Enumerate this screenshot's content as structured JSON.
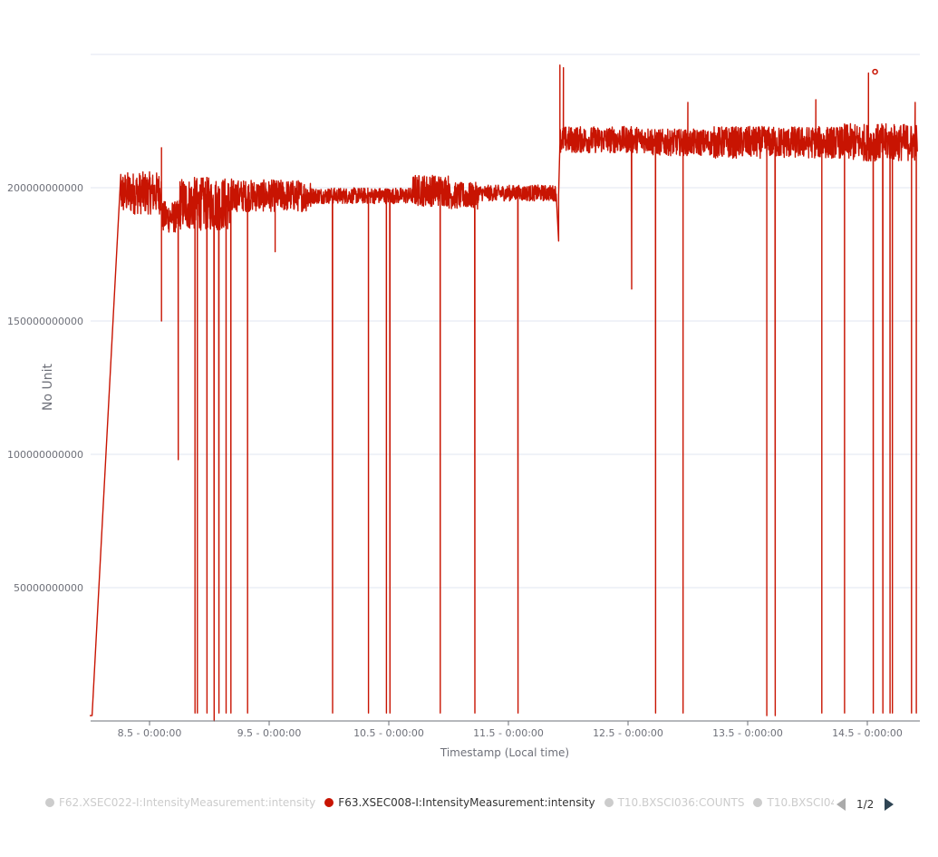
{
  "chart_data": {
    "type": "line",
    "ylabel": "No Unit",
    "xlabel": "Timestamp (Local time)",
    "x_ticks": [
      "8.5 - 0:00:00",
      "9.5 - 0:00:00",
      "10.5 - 0:00:00",
      "11.5 - 0:00:00",
      "12.5 - 0:00:00",
      "13.5 - 0:00:00",
      "14.5 - 0:00:00"
    ],
    "x_range_days": [
      8.0,
      14.92
    ],
    "y_ticks": [
      "50000000000",
      "100000000000",
      "150000000000",
      "200000000000"
    ],
    "ylim": [
      0,
      250000000000
    ],
    "grid": true,
    "series_color": "#c81402",
    "series": [
      {
        "name": "F63.XSEC008-I:IntensityMeasurement:intensity",
        "segments": [
          {
            "x_range": [
              8.0,
              8.02
            ],
            "base": 2000000000,
            "noise": 0
          },
          {
            "x_range": [
              8.02,
              8.26
            ],
            "base": 2000000000,
            "noise": 0,
            "ramp_to": 205000000000
          },
          {
            "x_range": [
              8.26,
              8.6
            ],
            "base": 198000000000,
            "noise": 8000000000
          },
          {
            "x_range": [
              8.6,
              8.75
            ],
            "base": 189000000000,
            "noise": 6000000000
          },
          {
            "x_range": [
              8.75,
              9.2
            ],
            "base": 194000000000,
            "noise": 10000000000
          },
          {
            "x_range": [
              9.2,
              9.85
            ],
            "base": 197000000000,
            "noise": 6000000000
          },
          {
            "x_range": [
              9.85,
              10.7
            ],
            "base": 197000000000,
            "noise": 3000000000
          },
          {
            "x_range": [
              10.7,
              11.0
            ],
            "base": 199000000000,
            "noise": 6000000000
          },
          {
            "x_range": [
              11.0,
              11.25
            ],
            "base": 197000000000,
            "noise": 5000000000
          },
          {
            "x_range": [
              11.25,
              11.9
            ],
            "base": 198000000000,
            "noise": 3000000000
          },
          {
            "x_range": [
              11.93,
              12.7
            ],
            "base": 218000000000,
            "noise": 5000000000
          },
          {
            "x_range": [
              12.7,
              13.2
            ],
            "base": 217000000000,
            "noise": 5000000000
          },
          {
            "x_range": [
              13.2,
              14.3
            ],
            "base": 217000000000,
            "noise": 6000000000
          },
          {
            "x_range": [
              14.3,
              14.92
            ],
            "base": 217000000000,
            "noise": 7000000000
          }
        ],
        "spikes_up": [
          {
            "x": 8.6,
            "y": 215000000000
          },
          {
            "x": 11.93,
            "y": 246000000000
          },
          {
            "x": 11.96,
            "y": 245000000000
          },
          {
            "x": 13.0,
            "y": 232000000000
          },
          {
            "x": 14.07,
            "y": 233000000000
          },
          {
            "x": 14.51,
            "y": 243000000000
          },
          {
            "x": 14.9,
            "y": 232000000000
          }
        ],
        "spikes_down": [
          {
            "x": 8.6,
            "y": 150000000000
          },
          {
            "x": 8.74,
            "y": 98000000000
          },
          {
            "x": 8.88,
            "y": 3000000000
          },
          {
            "x": 8.9,
            "y": 3000000000
          },
          {
            "x": 8.98,
            "y": 3000000000
          },
          {
            "x": 9.04,
            "y": 0
          },
          {
            "x": 9.08,
            "y": 3000000000
          },
          {
            "x": 9.14,
            "y": 3000000000
          },
          {
            "x": 9.18,
            "y": 3000000000
          },
          {
            "x": 9.32,
            "y": 3000000000
          },
          {
            "x": 9.55,
            "y": 176000000000
          },
          {
            "x": 10.03,
            "y": 3000000000
          },
          {
            "x": 10.33,
            "y": 3000000000
          },
          {
            "x": 10.48,
            "y": 3000000000
          },
          {
            "x": 10.51,
            "y": 3000000000
          },
          {
            "x": 10.93,
            "y": 3000000000
          },
          {
            "x": 11.22,
            "y": 3000000000
          },
          {
            "x": 11.58,
            "y": 3000000000
          },
          {
            "x": 11.92,
            "y": 180000000000
          },
          {
            "x": 12.53,
            "y": 162000000000
          },
          {
            "x": 12.73,
            "y": 3000000000
          },
          {
            "x": 12.96,
            "y": 3000000000
          },
          {
            "x": 13.66,
            "y": 2000000000
          },
          {
            "x": 13.73,
            "y": 2000000000
          },
          {
            "x": 14.12,
            "y": 3000000000
          },
          {
            "x": 14.31,
            "y": 3000000000
          },
          {
            "x": 14.55,
            "y": 3000000000
          },
          {
            "x": 14.63,
            "y": 3000000000
          },
          {
            "x": 14.69,
            "y": 3000000000
          },
          {
            "x": 14.71,
            "y": 3000000000
          },
          {
            "x": 14.87,
            "y": 3000000000
          },
          {
            "x": 14.91,
            "y": 3000000000
          }
        ],
        "highlight_point": {
          "x": 14.565,
          "y": 243500000000
        }
      }
    ]
  },
  "legend": {
    "items": [
      {
        "label": "F62.XSEC022-I:IntensityMeasurement:intensity",
        "color": "#cccccc",
        "text_color": "#cccccc",
        "active": false
      },
      {
        "label": "F63.XSEC008-I:IntensityMeasurement:intensity",
        "color": "#c81402",
        "text_color": "#333333",
        "active": true
      },
      {
        "label": "T10.BXSCI036:COUNTS",
        "color": "#cccccc",
        "text_color": "#cccccc",
        "active": false
      },
      {
        "label": "T10.BXSCI04",
        "color": "#cccccc",
        "text_color": "#cccccc",
        "active": false
      }
    ],
    "page": "1/2"
  }
}
